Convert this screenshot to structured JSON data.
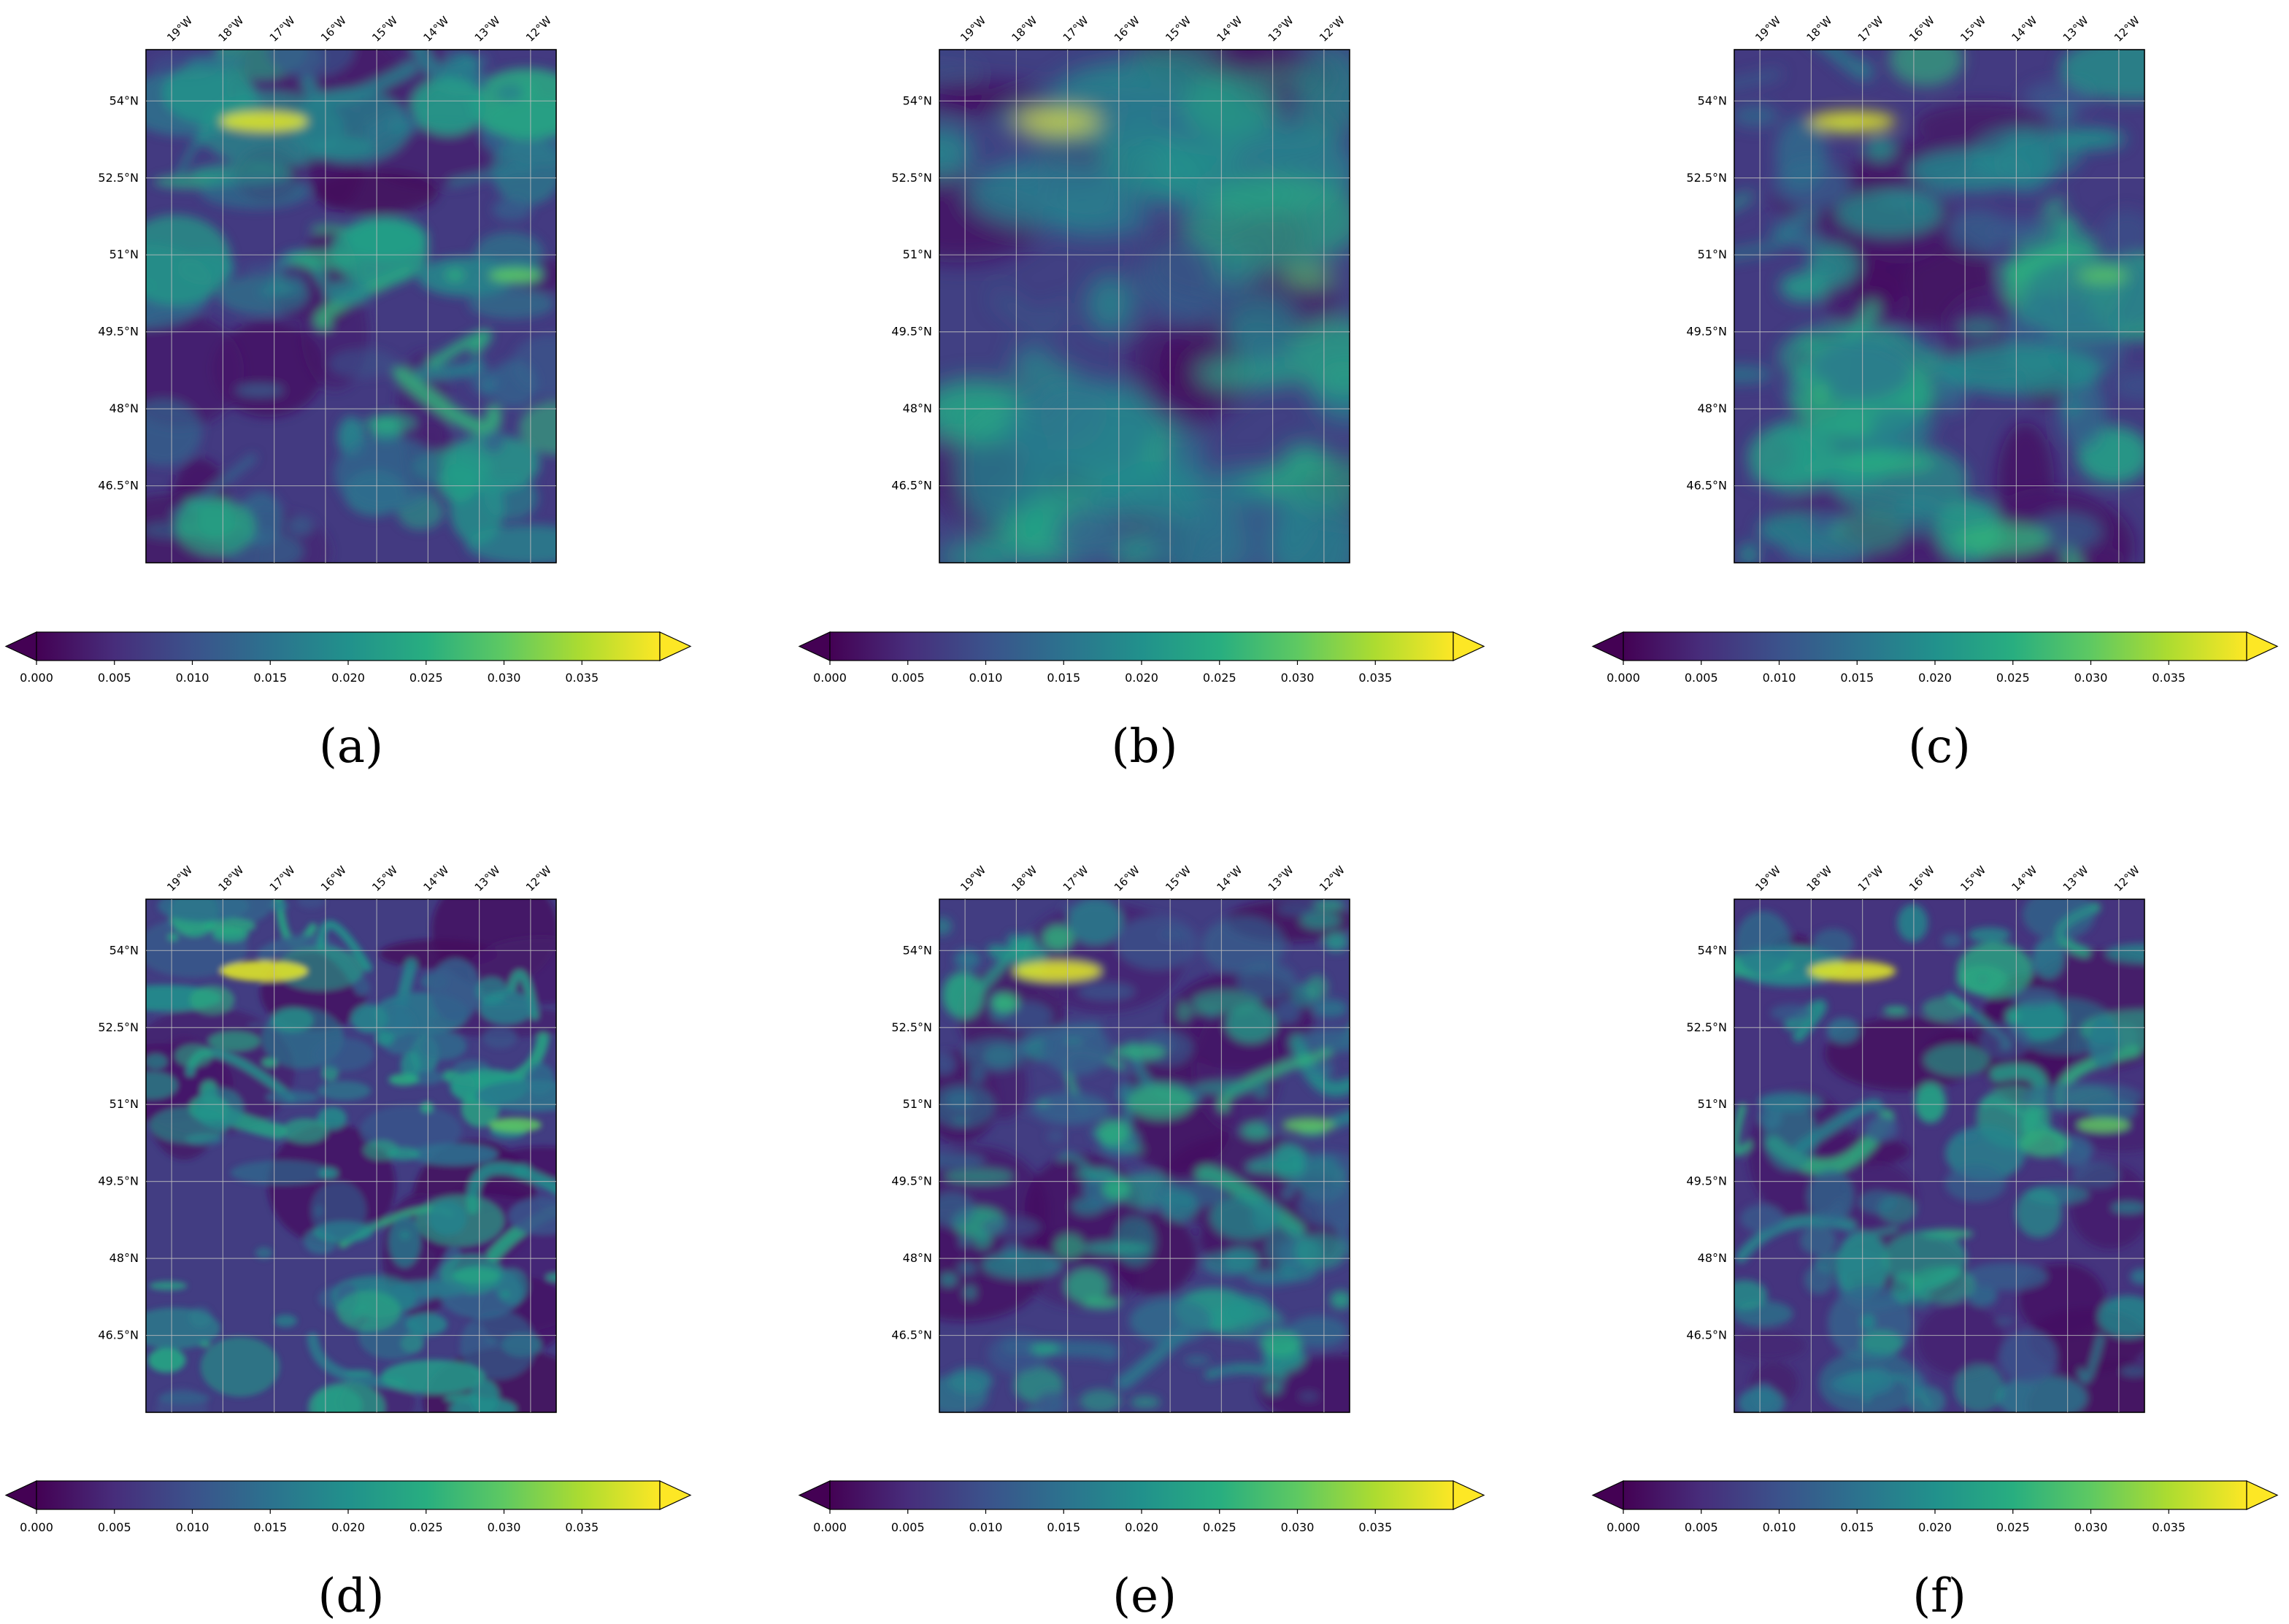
{
  "chart_data": [
    {
      "type": "heatmap",
      "panel_label": "(a)",
      "map_style": "smooth"
    },
    {
      "type": "heatmap",
      "panel_label": "(b)",
      "map_style": "blurry"
    },
    {
      "type": "heatmap",
      "panel_label": "(c)",
      "map_style": "medium"
    },
    {
      "type": "heatmap",
      "panel_label": "(d)",
      "map_style": "noisy"
    },
    {
      "type": "heatmap",
      "panel_label": "(e)",
      "map_style": "textured"
    },
    {
      "type": "heatmap",
      "panel_label": "(f)",
      "map_style": "sharp"
    }
  ],
  "shared_axes": {
    "lon_ticks": [
      "19°W",
      "18°W",
      "17°W",
      "16°W",
      "15°W",
      "14°W",
      "13°W",
      "12°W"
    ],
    "lon_values": [
      -19,
      -18,
      -17,
      -16,
      -15,
      -14,
      -13,
      -12
    ],
    "lat_ticks": [
      "54°N",
      "52.5°N",
      "51°N",
      "49.5°N",
      "48°N",
      "46.5°N"
    ],
    "lat_values": [
      54,
      52.5,
      51,
      49.5,
      48,
      46.5
    ],
    "lon_range": [
      -19.5,
      -11.5
    ],
    "lat_range": [
      45.0,
      55.0
    ],
    "grid": true,
    "colorbar": {
      "ticks": [
        "0.000",
        "0.005",
        "0.010",
        "0.015",
        "0.020",
        "0.025",
        "0.030",
        "0.035"
      ],
      "tick_values": [
        0,
        0.005,
        0.01,
        0.015,
        0.02,
        0.025,
        0.03,
        0.035
      ],
      "range": [
        0,
        0.04
      ],
      "extend": "both",
      "colormap": "viridis",
      "orientation": "horizontal",
      "placement": "below"
    }
  },
  "colors": {
    "viridis": [
      "#440154",
      "#472d7b",
      "#3b528b",
      "#2c728e",
      "#21918c",
      "#28ae80",
      "#5ec962",
      "#addc30",
      "#fde725"
    ],
    "grid": "#bbbbbb"
  }
}
